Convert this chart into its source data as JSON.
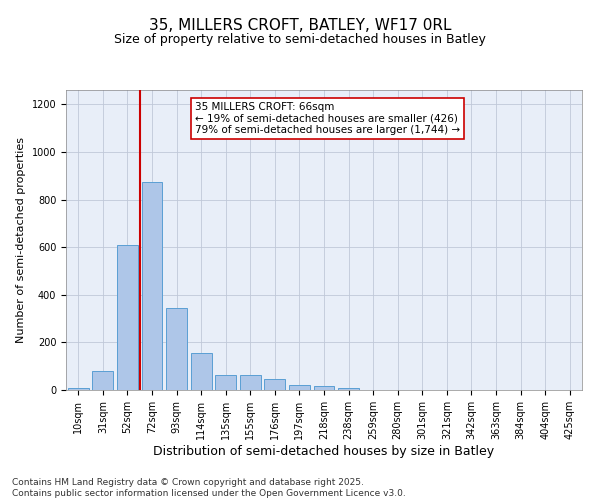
{
  "title1": "35, MILLERS CROFT, BATLEY, WF17 0RL",
  "title2": "Size of property relative to semi-detached houses in Batley",
  "xlabel": "Distribution of semi-detached houses by size in Batley",
  "ylabel": "Number of semi-detached properties",
  "categories": [
    "10sqm",
    "31sqm",
    "52sqm",
    "72sqm",
    "93sqm",
    "114sqm",
    "135sqm",
    "155sqm",
    "176sqm",
    "197sqm",
    "218sqm",
    "238sqm",
    "259sqm",
    "280sqm",
    "301sqm",
    "321sqm",
    "342sqm",
    "363sqm",
    "384sqm",
    "404sqm",
    "425sqm"
  ],
  "values": [
    10,
    80,
    610,
    875,
    345,
    155,
    65,
    65,
    48,
    22,
    18,
    8,
    0,
    0,
    0,
    0,
    0,
    0,
    0,
    0,
    0
  ],
  "bar_color": "#aec6e8",
  "bar_edge_color": "#5a9fd4",
  "vline_color": "#cc0000",
  "annotation_text": "35 MILLERS CROFT: 66sqm\n← 19% of semi-detached houses are smaller (426)\n79% of semi-detached houses are larger (1,744) →",
  "annotation_box_color": "#ffffff",
  "annotation_box_edge": "#cc0000",
  "ylim": [
    0,
    1260
  ],
  "yticks": [
    0,
    200,
    400,
    600,
    800,
    1000,
    1200
  ],
  "background_color": "#e8eef8",
  "footer": "Contains HM Land Registry data © Crown copyright and database right 2025.\nContains public sector information licensed under the Open Government Licence v3.0.",
  "title1_fontsize": 11,
  "title2_fontsize": 9,
  "xlabel_fontsize": 9,
  "ylabel_fontsize": 8,
  "tick_fontsize": 7,
  "footer_fontsize": 6.5,
  "ann_fontsize": 7.5
}
